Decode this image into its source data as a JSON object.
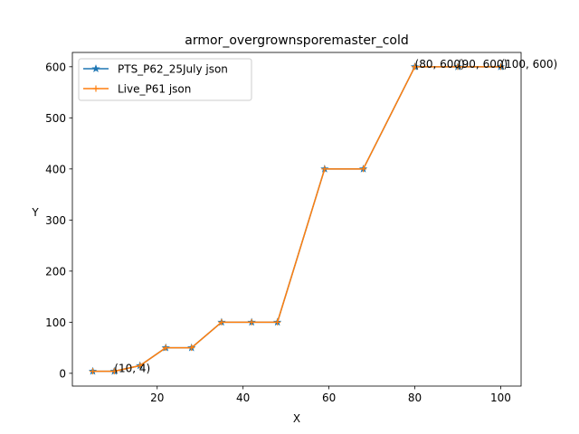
{
  "chart_data": {
    "type": "line",
    "title": "armor_overgrownsporemaster_cold",
    "xlabel": "X",
    "ylabel": "Y",
    "xlim": [
      0.25,
      104.75
    ],
    "ylim": [
      -25,
      628
    ],
    "xticks": [
      20,
      40,
      60,
      80,
      100
    ],
    "yticks": [
      0,
      100,
      200,
      300,
      400,
      500,
      600
    ],
    "grid": false,
    "legend_position": "upper-left",
    "series": [
      {
        "name": "PTS_P62_25July json",
        "color": "#1f77b4",
        "marker": "star",
        "x": [
          5,
          10,
          16,
          22,
          28,
          35,
          42,
          48,
          59,
          68,
          80,
          90,
          100
        ],
        "y": [
          4,
          4,
          15,
          50,
          50,
          100,
          100,
          100,
          400,
          400,
          600,
          600,
          600
        ]
      },
      {
        "name": "Live_P61 json",
        "color": "#ff7f0e",
        "marker": "plus",
        "x": [
          5,
          10,
          16,
          22,
          28,
          35,
          42,
          48,
          59,
          68,
          80,
          90,
          100
        ],
        "y": [
          4,
          4,
          15,
          50,
          50,
          100,
          100,
          100,
          400,
          400,
          600,
          600,
          600
        ]
      }
    ],
    "annotations": [
      {
        "text": "(10, 4)",
        "x": 10,
        "y": 4
      },
      {
        "text": "(80, 600)",
        "x": 80,
        "y": 600
      },
      {
        "text": "(90, 600)",
        "x": 90,
        "y": 600
      },
      {
        "text": "(100, 600)",
        "x": 100,
        "y": 600
      }
    ]
  }
}
